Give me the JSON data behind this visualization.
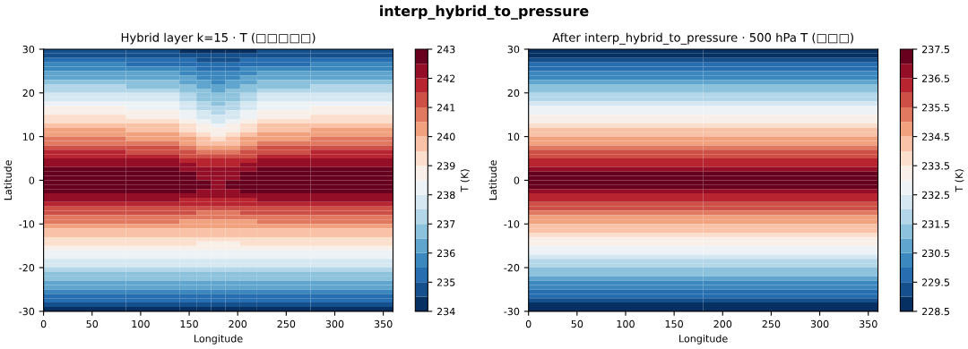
{
  "chart_data": [
    {
      "type": "heatmap",
      "title": "Hybrid layer k=15 · T (□□□□□)",
      "annotations": [
        "interp_hybrid_to_pressure"
      ],
      "xlabel": "Longitude",
      "ylabel": "Latitude",
      "clabel": "T (K)",
      "x": [
        40,
        130,
        150,
        165,
        180,
        195,
        210,
        230,
        320
      ],
      "y": [
        29.5,
        28.5,
        27.5,
        26.5,
        25.5,
        24.5,
        23.5,
        22.5,
        21.5,
        20.5,
        19.5,
        18.5,
        17.5,
        16.5,
        15.5,
        14.5,
        13.5,
        12.5,
        11.5,
        10.5,
        9.5,
        8.5,
        7.5,
        6.5,
        5.5,
        4.5,
        3.5,
        2.5,
        1.5,
        0.5,
        -0.5,
        -1.5,
        -2.5,
        -3.5,
        -4.5,
        -5.5,
        -6.5,
        -7.5,
        -8.5,
        -9.5,
        -10.5,
        -11.5,
        -12.5,
        -13.5,
        -14.5,
        -15.5,
        -16.5,
        -17.5,
        -18.5,
        -19.5,
        -20.5,
        -21.5,
        -22.5,
        -23.5,
        -24.5,
        -25.5,
        -26.5,
        -27.5,
        -28.5,
        -29.5
      ],
      "cells": [
        [
          234.6,
          234.5,
          234.4,
          234.3,
          234.2,
          234.3,
          234.4,
          234.5,
          234.6
        ],
        [
          234.9,
          234.8,
          234.7,
          234.6,
          234.5,
          234.6,
          234.7,
          234.8,
          234.9
        ],
        [
          235.2,
          235.1,
          235.0,
          234.8,
          234.8,
          234.8,
          235.0,
          235.1,
          235.2
        ],
        [
          235.5,
          235.4,
          235.3,
          235.1,
          235.0,
          235.1,
          235.3,
          235.4,
          235.5
        ],
        [
          235.8,
          235.7,
          235.6,
          235.4,
          235.3,
          235.4,
          235.6,
          235.7,
          235.8
        ],
        [
          236.1,
          236.0,
          235.8,
          235.6,
          235.5,
          235.6,
          235.8,
          236.0,
          236.1
        ],
        [
          236.4,
          236.3,
          236.1,
          235.8,
          235.7,
          235.8,
          236.1,
          236.3,
          236.4
        ],
        [
          236.7,
          236.6,
          236.3,
          236.0,
          235.9,
          236.0,
          236.3,
          236.6,
          236.7
        ],
        [
          237.0,
          236.9,
          236.6,
          236.3,
          236.1,
          236.3,
          236.6,
          236.9,
          237.0
        ],
        [
          237.3,
          237.2,
          236.8,
          236.5,
          236.3,
          236.5,
          236.8,
          237.2,
          237.3
        ],
        [
          237.6,
          237.5,
          237.1,
          236.7,
          236.5,
          236.7,
          237.1,
          237.5,
          237.6
        ],
        [
          237.9,
          237.7,
          237.3,
          236.9,
          236.7,
          236.9,
          237.3,
          237.7,
          237.9
        ],
        [
          238.2,
          238.0,
          237.6,
          237.1,
          236.9,
          237.1,
          237.6,
          238.0,
          238.2
        ],
        [
          238.5,
          238.3,
          237.8,
          237.3,
          237.1,
          237.3,
          237.8,
          238.3,
          238.5
        ],
        [
          238.8,
          238.6,
          238.1,
          237.6,
          237.4,
          237.6,
          238.1,
          238.6,
          238.8
        ],
        [
          239.1,
          238.9,
          238.4,
          237.9,
          237.6,
          237.9,
          238.4,
          238.9,
          239.1
        ],
        [
          239.4,
          239.2,
          238.7,
          238.2,
          237.9,
          238.2,
          238.7,
          239.2,
          239.4
        ],
        [
          239.7,
          239.5,
          239.0,
          238.5,
          238.2,
          238.5,
          239.0,
          239.5,
          239.7
        ],
        [
          240.0,
          239.8,
          239.3,
          238.8,
          238.6,
          238.8,
          239.3,
          239.8,
          240.0
        ],
        [
          240.3,
          240.1,
          239.6,
          239.1,
          238.9,
          239.1,
          239.6,
          240.1,
          240.3
        ],
        [
          240.6,
          240.4,
          240.0,
          239.5,
          239.3,
          239.5,
          240.0,
          240.4,
          240.6
        ],
        [
          240.9,
          240.8,
          240.3,
          239.9,
          239.8,
          239.9,
          240.3,
          240.8,
          240.9
        ],
        [
          241.2,
          241.1,
          240.7,
          240.4,
          240.2,
          240.4,
          240.7,
          241.1,
          241.2
        ],
        [
          241.5,
          241.4,
          241.1,
          240.8,
          240.7,
          240.8,
          241.1,
          241.4,
          241.5
        ],
        [
          241.8,
          241.7,
          241.4,
          241.2,
          241.1,
          241.2,
          241.4,
          241.7,
          241.8
        ],
        [
          242.1,
          242.0,
          241.8,
          241.6,
          241.5,
          241.6,
          241.8,
          242.0,
          242.1
        ],
        [
          242.4,
          242.3,
          242.1,
          241.9,
          241.8,
          241.9,
          242.1,
          242.3,
          242.4
        ],
        [
          242.6,
          242.5,
          242.3,
          242.1,
          242.1,
          242.1,
          242.3,
          242.5,
          242.6
        ],
        [
          242.8,
          242.7,
          242.5,
          242.3,
          242.3,
          242.3,
          242.5,
          242.7,
          242.8
        ],
        [
          242.9,
          242.8,
          242.6,
          242.4,
          242.3,
          242.4,
          242.6,
          242.8,
          242.9
        ],
        [
          242.9,
          242.8,
          242.7,
          242.5,
          242.4,
          242.5,
          242.7,
          242.8,
          242.9
        ],
        [
          242.8,
          242.7,
          242.6,
          242.5,
          242.4,
          242.5,
          242.6,
          242.7,
          242.8
        ],
        [
          242.6,
          242.6,
          242.5,
          242.4,
          242.3,
          242.4,
          242.5,
          242.6,
          242.6
        ],
        [
          242.3,
          242.3,
          242.2,
          242.1,
          242.1,
          242.1,
          242.2,
          242.3,
          242.3
        ],
        [
          242.0,
          242.0,
          241.9,
          241.8,
          241.8,
          241.8,
          241.9,
          242.0,
          242.0
        ],
        [
          241.7,
          241.7,
          241.6,
          241.5,
          241.5,
          241.5,
          241.6,
          241.7,
          241.7
        ],
        [
          241.4,
          241.4,
          241.3,
          241.2,
          241.2,
          241.2,
          241.3,
          241.4,
          241.4
        ],
        [
          241.1,
          241.1,
          241.0,
          240.9,
          240.9,
          240.9,
          241.0,
          241.1,
          241.1
        ],
        [
          240.8,
          240.8,
          240.7,
          240.6,
          240.6,
          240.6,
          240.7,
          240.8,
          240.8
        ],
        [
          240.5,
          240.5,
          240.4,
          240.3,
          240.3,
          240.3,
          240.4,
          240.5,
          240.5
        ],
        [
          240.2,
          240.2,
          240.2,
          240.1,
          240.1,
          240.1,
          240.2,
          240.2,
          240.2
        ],
        [
          239.9,
          239.9,
          239.9,
          239.8,
          239.8,
          239.8,
          239.9,
          239.9,
          239.9
        ],
        [
          239.6,
          239.6,
          239.6,
          239.5,
          239.5,
          239.5,
          239.6,
          239.6,
          239.6
        ],
        [
          239.3,
          239.3,
          239.3,
          239.2,
          239.2,
          239.2,
          239.3,
          239.3,
          239.3
        ],
        [
          239.0,
          239.0,
          239.0,
          238.9,
          238.9,
          238.9,
          239.0,
          239.0,
          239.0
        ],
        [
          238.7,
          238.7,
          238.7,
          238.6,
          238.6,
          238.6,
          238.7,
          238.7,
          238.7
        ],
        [
          238.4,
          238.4,
          238.4,
          238.4,
          238.4,
          238.4,
          238.4,
          238.4,
          238.4
        ],
        [
          238.1,
          238.1,
          238.1,
          238.1,
          238.1,
          238.1,
          238.1,
          238.1,
          238.1
        ],
        [
          237.8,
          237.8,
          237.8,
          237.8,
          237.8,
          237.8,
          237.8,
          237.8,
          237.8
        ],
        [
          237.5,
          237.5,
          237.5,
          237.5,
          237.5,
          237.5,
          237.5,
          237.5,
          237.5
        ],
        [
          237.2,
          237.2,
          237.2,
          237.2,
          237.2,
          237.2,
          237.2,
          237.2,
          237.2
        ],
        [
          236.9,
          236.9,
          236.9,
          236.9,
          236.9,
          236.9,
          236.9,
          236.9,
          236.9
        ],
        [
          236.6,
          236.6,
          236.6,
          236.6,
          236.6,
          236.6,
          236.6,
          236.6,
          236.6
        ],
        [
          236.3,
          236.3,
          236.3,
          236.3,
          236.3,
          236.3,
          236.3,
          236.3,
          236.3
        ],
        [
          236.0,
          236.0,
          236.0,
          236.0,
          236.0,
          236.0,
          236.0,
          236.0,
          236.0
        ],
        [
          235.7,
          235.7,
          235.7,
          235.7,
          235.7,
          235.7,
          235.7,
          235.7,
          235.7
        ],
        [
          235.4,
          235.4,
          235.4,
          235.4,
          235.4,
          235.4,
          235.4,
          235.4,
          235.4
        ],
        [
          235.1,
          235.1,
          235.1,
          235.1,
          235.1,
          235.1,
          235.1,
          235.1,
          235.1
        ],
        [
          234.8,
          234.8,
          234.8,
          234.8,
          234.8,
          234.8,
          234.8,
          234.8,
          234.8
        ],
        [
          234.4,
          234.4,
          234.4,
          234.4,
          234.4,
          234.4,
          234.4,
          234.4,
          234.4
        ]
      ],
      "xlim": [
        0,
        360
      ],
      "ylim": [
        -30,
        30
      ],
      "xticks": [
        0,
        50,
        100,
        150,
        200,
        250,
        300,
        350
      ],
      "yticks": [
        -30,
        -20,
        -10,
        0,
        10,
        20,
        30
      ],
      "clim": [
        234,
        243
      ],
      "cticks": [
        234,
        235,
        236,
        237,
        238,
        239,
        240,
        241,
        242,
        243
      ]
    },
    {
      "type": "heatmap",
      "title": "After interp_hybrid_to_pressure · 500 hPa T (□□□)",
      "xlabel": "Longitude",
      "ylabel": "Latitude",
      "clabel": "T (K)",
      "x": [
        90,
        270
      ],
      "y": [
        29.5,
        28.5,
        27.5,
        26.5,
        25.5,
        24.5,
        23.5,
        22.5,
        21.5,
        20.5,
        19.5,
        18.5,
        17.5,
        16.5,
        15.5,
        14.5,
        13.5,
        12.5,
        11.5,
        10.5,
        9.5,
        8.5,
        7.5,
        6.5,
        5.5,
        4.5,
        3.5,
        2.5,
        1.5,
        0.5,
        -0.5,
        -1.5,
        -2.5,
        -3.5,
        -4.5,
        -5.5,
        -6.5,
        -7.5,
        -8.5,
        -9.5,
        -10.5,
        -11.5,
        -12.5,
        -13.5,
        -14.5,
        -15.5,
        -16.5,
        -17.5,
        -18.5,
        -19.5,
        -20.5,
        -21.5,
        -22.5,
        -23.5,
        -24.5,
        -25.5,
        -26.5,
        -27.5,
        -28.5,
        -29.5
      ],
      "cells": [
        [
          228.65,
          228.65
        ],
        [
          228.95,
          228.95
        ],
        [
          229.25,
          229.25
        ],
        [
          229.55,
          229.55
        ],
        [
          229.85,
          229.85
        ],
        [
          230.15,
          230.15
        ],
        [
          230.45,
          230.45
        ],
        [
          230.75,
          230.75
        ],
        [
          231.05,
          231.05
        ],
        [
          231.35,
          231.35
        ],
        [
          231.65,
          231.65
        ],
        [
          231.95,
          231.95
        ],
        [
          232.25,
          232.25
        ],
        [
          232.55,
          232.55
        ],
        [
          232.85,
          232.85
        ],
        [
          233.15,
          233.15
        ],
        [
          233.45,
          233.45
        ],
        [
          233.75,
          233.75
        ],
        [
          234.05,
          234.05
        ],
        [
          234.35,
          234.35
        ],
        [
          234.65,
          234.65
        ],
        [
          234.95,
          234.95
        ],
        [
          235.25,
          235.25
        ],
        [
          235.55,
          235.55
        ],
        [
          235.85,
          235.85
        ],
        [
          236.15,
          236.15
        ],
        [
          236.45,
          236.45
        ],
        [
          236.75,
          236.75
        ],
        [
          237.05,
          237.05
        ],
        [
          237.35,
          237.35
        ],
        [
          237.35,
          237.35
        ],
        [
          237.05,
          237.05
        ],
        [
          236.75,
          236.75
        ],
        [
          236.45,
          236.45
        ],
        [
          236.15,
          236.15
        ],
        [
          235.85,
          235.85
        ],
        [
          235.55,
          235.55
        ],
        [
          235.25,
          235.25
        ],
        [
          234.95,
          234.95
        ],
        [
          234.65,
          234.65
        ],
        [
          234.35,
          234.35
        ],
        [
          234.05,
          234.05
        ],
        [
          233.75,
          233.75
        ],
        [
          233.45,
          233.45
        ],
        [
          233.15,
          233.15
        ],
        [
          232.85,
          232.85
        ],
        [
          232.55,
          232.55
        ],
        [
          232.25,
          232.25
        ],
        [
          231.95,
          231.95
        ],
        [
          231.65,
          231.65
        ],
        [
          231.35,
          231.35
        ],
        [
          231.05,
          231.05
        ],
        [
          230.75,
          230.75
        ],
        [
          230.45,
          230.45
        ],
        [
          230.15,
          230.15
        ],
        [
          229.85,
          229.85
        ],
        [
          229.55,
          229.55
        ],
        [
          229.25,
          229.25
        ],
        [
          228.95,
          228.95
        ],
        [
          228.65,
          228.65
        ]
      ],
      "xlim": [
        0,
        360
      ],
      "ylim": [
        -30,
        30
      ],
      "xticks": [
        0,
        50,
        100,
        150,
        200,
        250,
        300,
        350
      ],
      "yticks": [
        -30,
        -20,
        -10,
        0,
        10,
        20,
        30
      ],
      "clim": [
        228.5,
        237.5
      ],
      "cticks": [
        228.5,
        229.5,
        230.5,
        231.5,
        232.5,
        233.5,
        234.5,
        235.5,
        236.5,
        237.5
      ]
    }
  ]
}
